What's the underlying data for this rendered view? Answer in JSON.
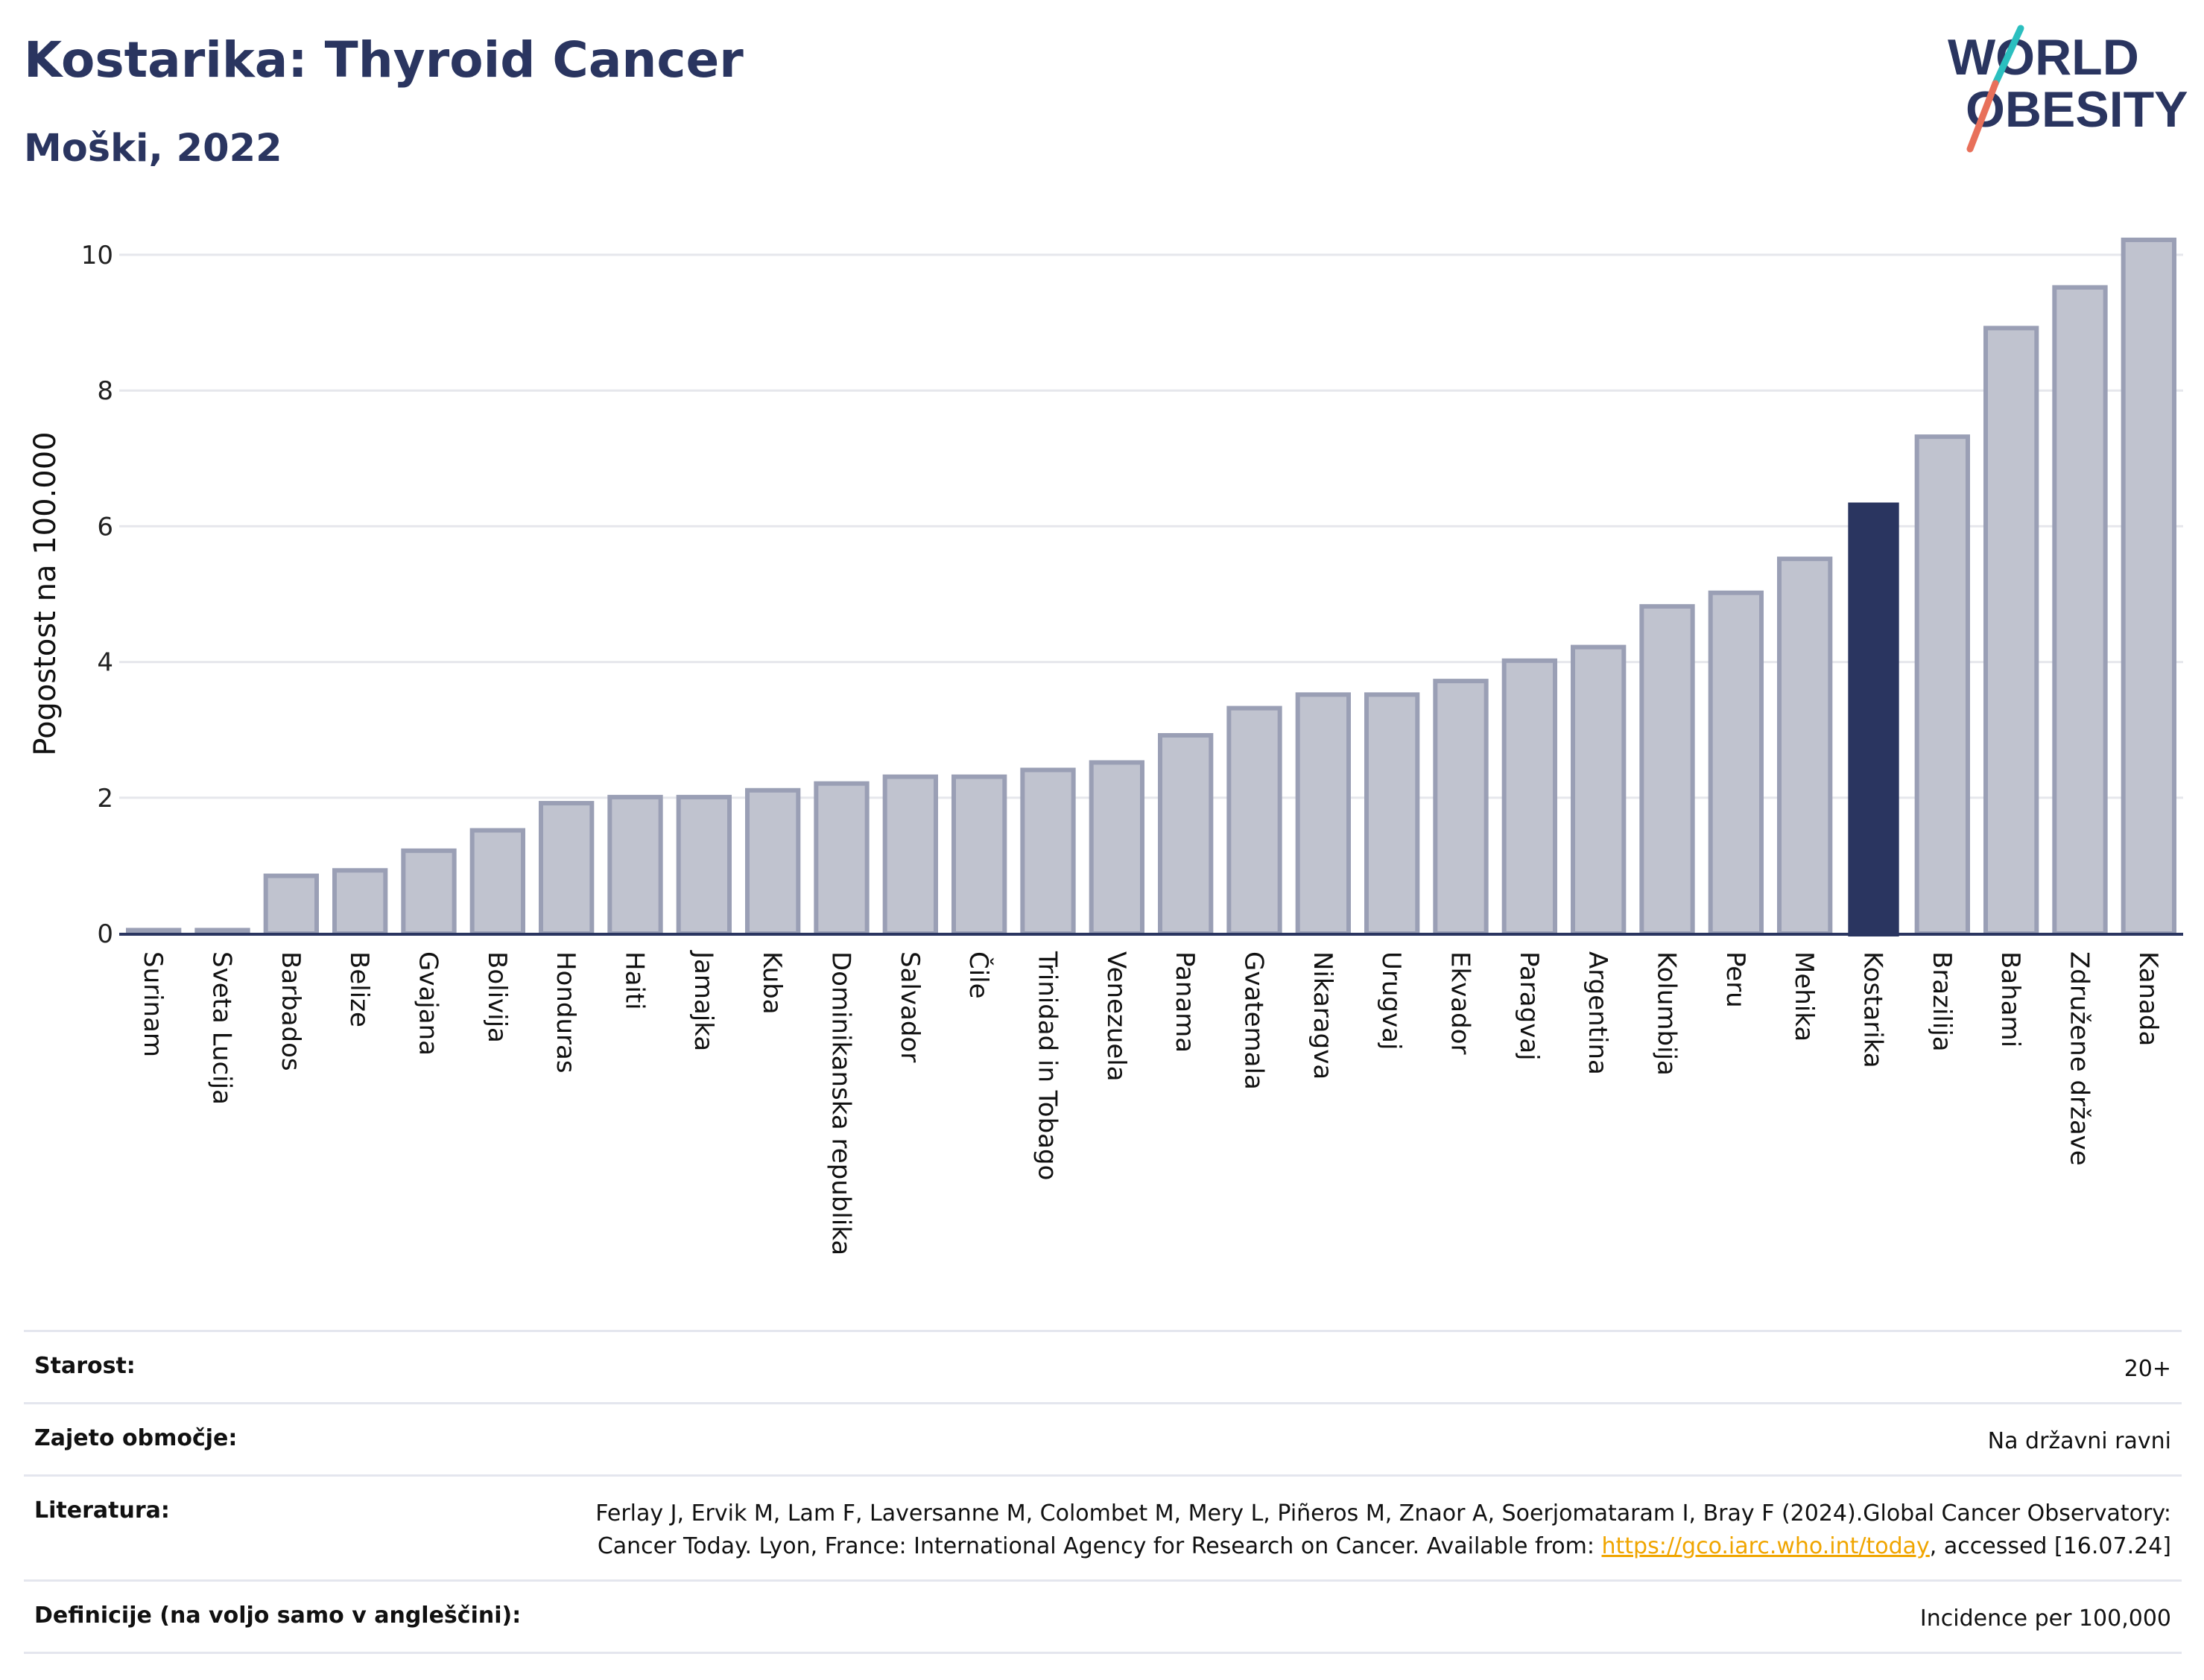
{
  "header": {
    "title": "Kostarika: Thyroid Cancer",
    "subtitle": "Moški, 2022"
  },
  "logo": {
    "line1": "WORLD",
    "line2": "OBESITY",
    "accent_teal": "#2bbfbf",
    "accent_red": "#e8705a",
    "text_color": "#2a3560"
  },
  "colors": {
    "bar_default": "#c0c3cf",
    "bar_default_stroke": "#9a9fb5",
    "bar_highlight": "#2a3560",
    "grid": "#e6e7ec",
    "axis": "#2a3560"
  },
  "chart_data": {
    "type": "bar",
    "categories": [
      "Surinam",
      "Sveta Lucija",
      "Barbados",
      "Belize",
      "Gvajana",
      "Bolivija",
      "Honduras",
      "Haiti",
      "Jamajka",
      "Kuba",
      "Dominikanska republika",
      "Salvador",
      "Čile",
      "Trinidad in Tobago",
      "Venezuela",
      "Panama",
      "Gvatemala",
      "Nikaragva",
      "Urugvaj",
      "Ekvador",
      "Paragvaj",
      "Argentina",
      "Kolumbija",
      "Peru",
      "Mehika",
      "Kostarika",
      "Brazilija",
      "Bahami",
      "Združene države",
      "Kanada"
    ],
    "values": [
      0.05,
      0.05,
      0.85,
      0.93,
      1.22,
      1.52,
      1.92,
      2.01,
      2.01,
      2.11,
      2.21,
      2.31,
      2.31,
      2.41,
      2.52,
      2.92,
      3.32,
      3.52,
      3.52,
      3.72,
      4.02,
      4.22,
      4.82,
      5.02,
      5.52,
      6.35,
      7.32,
      8.92,
      9.52,
      10.22
    ],
    "highlight": "Kostarika",
    "ylabel": "Pogostost na 100.000",
    "xlabel": "",
    "ylim": [
      0,
      10.5
    ],
    "yticks": [
      0,
      2,
      4,
      6,
      8,
      10
    ],
    "grid": true
  },
  "meta": {
    "rows": [
      {
        "label": "Starost:",
        "value": "20+"
      },
      {
        "label": "Zajeto območje:",
        "value": "Na državni ravni"
      },
      {
        "label": "Literatura:",
        "value_before": "Ferlay J, Ervik M, Lam F, Laversanne M, Colombet M, Mery L, Piñeros M, Znaor A, Soerjomataram I, Bray F (2024).Global Cancer Observatory: Cancer Today. Lyon, France: International Agency for Research on Cancer. Available from: ",
        "link": "https://gco.iarc.who.int/today",
        "value_after": ", accessed [16.07.24]"
      },
      {
        "label": "Definicije (na voljo samo v angleščini):",
        "value": "Incidence per 100,000"
      }
    ]
  }
}
